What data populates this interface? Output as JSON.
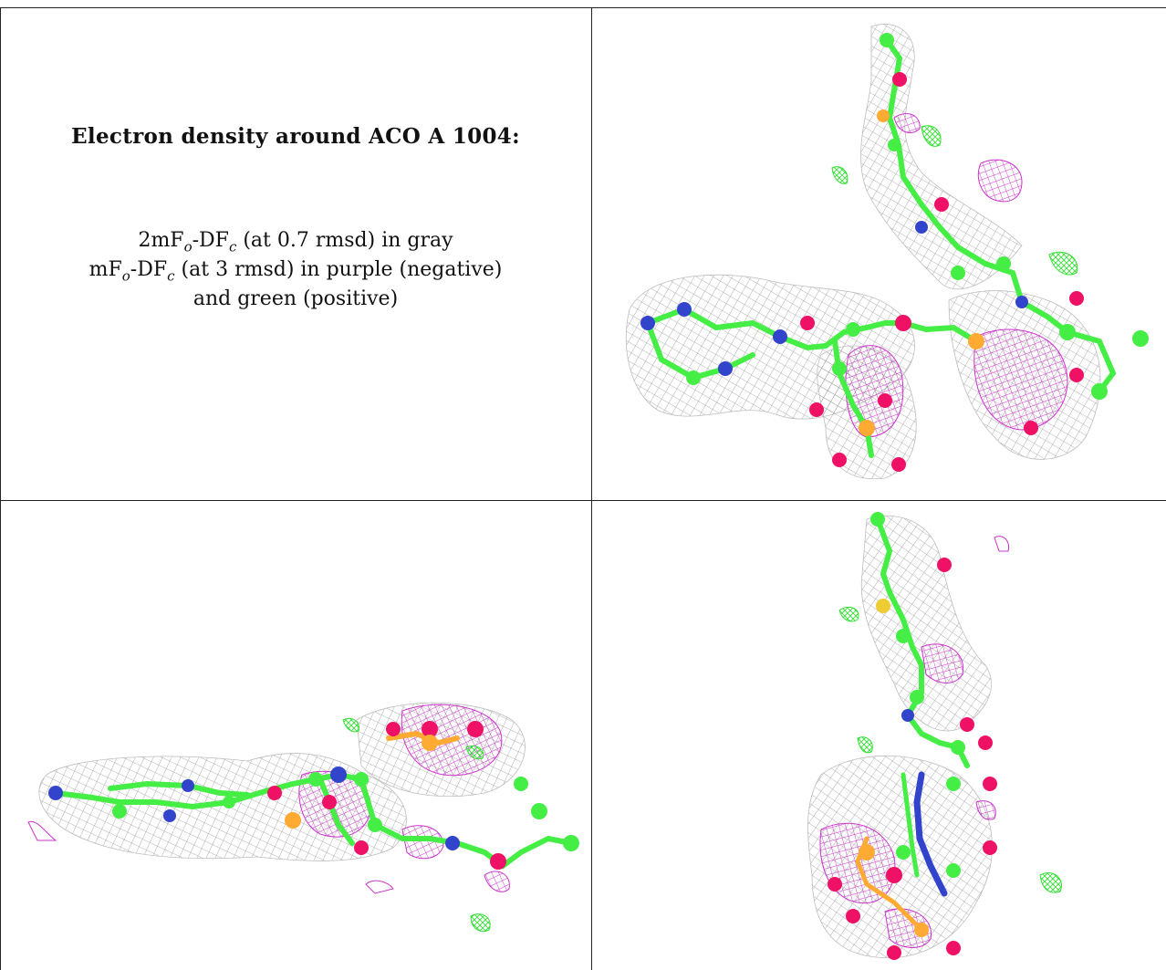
{
  "caption": {
    "title": "Electron density around ACO A 1004:",
    "line1_pre": "2mF",
    "line1_sub1": "o",
    "line1_mid": "-DF",
    "line1_sub2": "c",
    "line1_post": " (at 0.7 rmsd) in gray",
    "line2_pre": "mF",
    "line2_sub1": "o",
    "line2_mid": "-DF",
    "line2_sub2": "c",
    "line2_post": " (at 3 rmsd) in purple (negative)",
    "line3": "and green (positive)"
  },
  "views": [
    {
      "id": "view-top-right",
      "orientation": "front"
    },
    {
      "id": "view-bottom-left",
      "orientation": "side"
    },
    {
      "id": "view-bottom-right",
      "orientation": "top"
    }
  ],
  "colors": {
    "map_2fo_fc": "#9a9a9a",
    "map_negative": "#cc33cc",
    "map_positive": "#33e033",
    "carbon": "#44ee44",
    "oxygen": "#ee1166",
    "nitrogen": "#3344cc",
    "phosphorus": "#ff9922",
    "sulfur": "#eecc33"
  }
}
